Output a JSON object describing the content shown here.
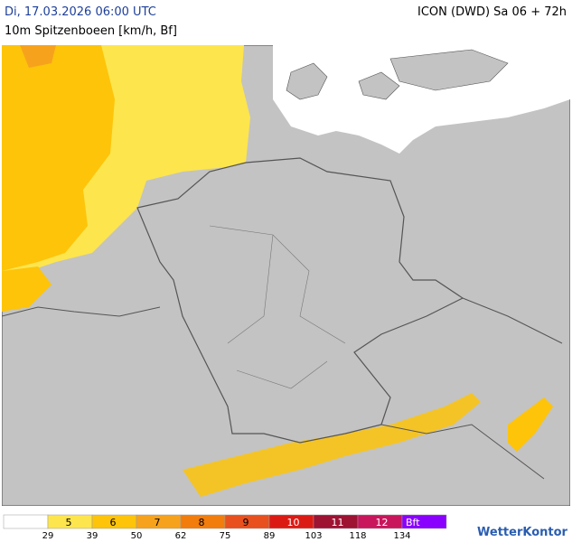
{
  "header": {
    "datetime": "Di, 17.03.2026 06:00 UTC",
    "subtitle": "10m Spitzenboeen [km/h, Bf]",
    "model": "ICON (DWD) Sa 06 + 72h"
  },
  "legend": {
    "classes": [
      {
        "color": "#ffffff"
      },
      {
        "label": "5",
        "color": "#fde54d"
      },
      {
        "label": "6",
        "color": "#fdc40a"
      },
      {
        "label": "7",
        "color": "#f7a21c"
      },
      {
        "label": "8",
        "color": "#f27c0c"
      },
      {
        "label": "9",
        "color": "#e8501e"
      },
      {
        "label": "10",
        "color": "#dc1a14"
      },
      {
        "label": "11",
        "color": "#9e1232"
      },
      {
        "label": "12",
        "color": "#c8155c"
      },
      {
        "label": "Bft",
        "color": "#8a00ff"
      }
    ],
    "thresholds": [
      29,
      39,
      50,
      62,
      75,
      89,
      103,
      118,
      134
    ]
  },
  "logo": "WetterKontor"
}
